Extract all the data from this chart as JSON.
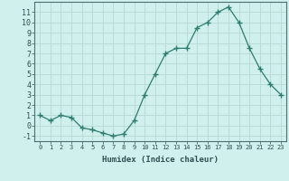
{
  "x": [
    0,
    1,
    2,
    3,
    4,
    5,
    6,
    7,
    8,
    9,
    10,
    11,
    12,
    13,
    14,
    15,
    16,
    17,
    18,
    19,
    20,
    21,
    22,
    23
  ],
  "y": [
    1,
    0.5,
    1,
    0.8,
    -0.2,
    -0.4,
    -0.7,
    -1,
    -0.8,
    0.5,
    3,
    5,
    7,
    7.5,
    7.5,
    9.5,
    10,
    11,
    11.5,
    10,
    7.5,
    5.5,
    4,
    3
  ],
  "xlabel": "Humidex (Indice chaleur)",
  "xlim": [
    -0.5,
    23.5
  ],
  "ylim": [
    -1.5,
    12
  ],
  "yticks": [
    -1,
    0,
    1,
    2,
    3,
    4,
    5,
    6,
    7,
    8,
    9,
    10,
    11
  ],
  "xticks": [
    0,
    1,
    2,
    3,
    4,
    5,
    6,
    7,
    8,
    9,
    10,
    11,
    12,
    13,
    14,
    15,
    16,
    17,
    18,
    19,
    20,
    21,
    22,
    23
  ],
  "line_color": "#2e7d6e",
  "marker": "+",
  "marker_size": 4,
  "bg_color": "#cff0ec",
  "grid_color": "#b8d8d4",
  "tick_label_color": "#2e5050",
  "font_family": "monospace",
  "xlabel_fontsize": 6.5,
  "tick_fontsize_x": 5,
  "tick_fontsize_y": 6
}
